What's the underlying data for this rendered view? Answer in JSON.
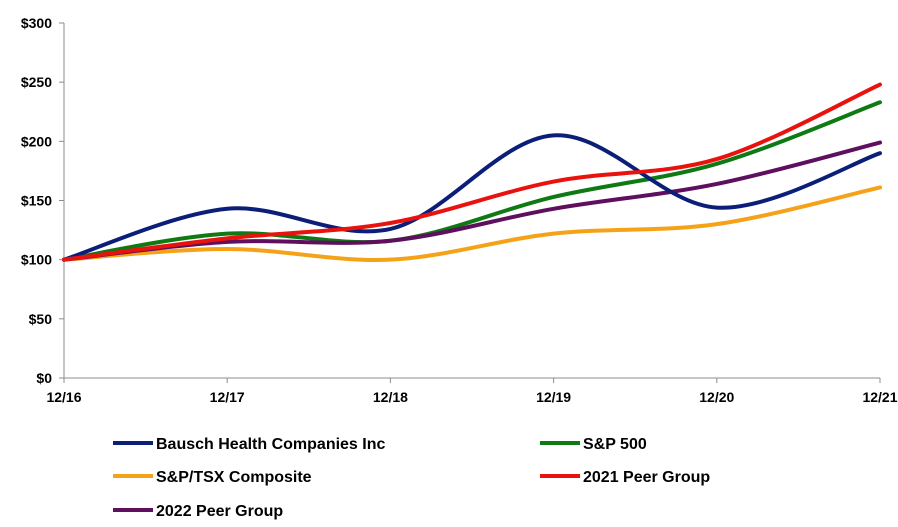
{
  "chart_data": {
    "type": "line",
    "title": "",
    "xlabel": "",
    "ylabel": "",
    "categories": [
      "12/16",
      "12/17",
      "12/18",
      "12/19",
      "12/20",
      "12/21"
    ],
    "ylim": [
      0,
      300
    ],
    "y_ticks": [
      0,
      50,
      100,
      150,
      200,
      250,
      300
    ],
    "y_tick_labels": [
      "$0",
      "$50",
      "$100",
      "$150",
      "$200",
      "$250",
      "$300"
    ],
    "grid": false,
    "legend_position": "bottom",
    "series": [
      {
        "name": "Bausch Health Companies Inc",
        "color": "#0b1f78",
        "values": [
          100,
          143,
          126,
          205,
          144,
          190
        ]
      },
      {
        "name": "S&P 500",
        "color": "#0f7a14",
        "values": [
          100,
          122,
          116,
          153,
          181,
          233
        ]
      },
      {
        "name": "S&P/TSX Composite",
        "color": "#f5a219",
        "values": [
          100,
          109,
          100,
          122,
          130,
          161
        ]
      },
      {
        "name": "2021 Peer Group",
        "color": "#e8130e",
        "values": [
          100,
          118,
          131,
          166,
          185,
          248
        ]
      },
      {
        "name": "2022 Peer Group",
        "color": "#5e0f5e",
        "values": [
          100,
          115,
          116,
          143,
          164,
          199
        ]
      }
    ]
  }
}
